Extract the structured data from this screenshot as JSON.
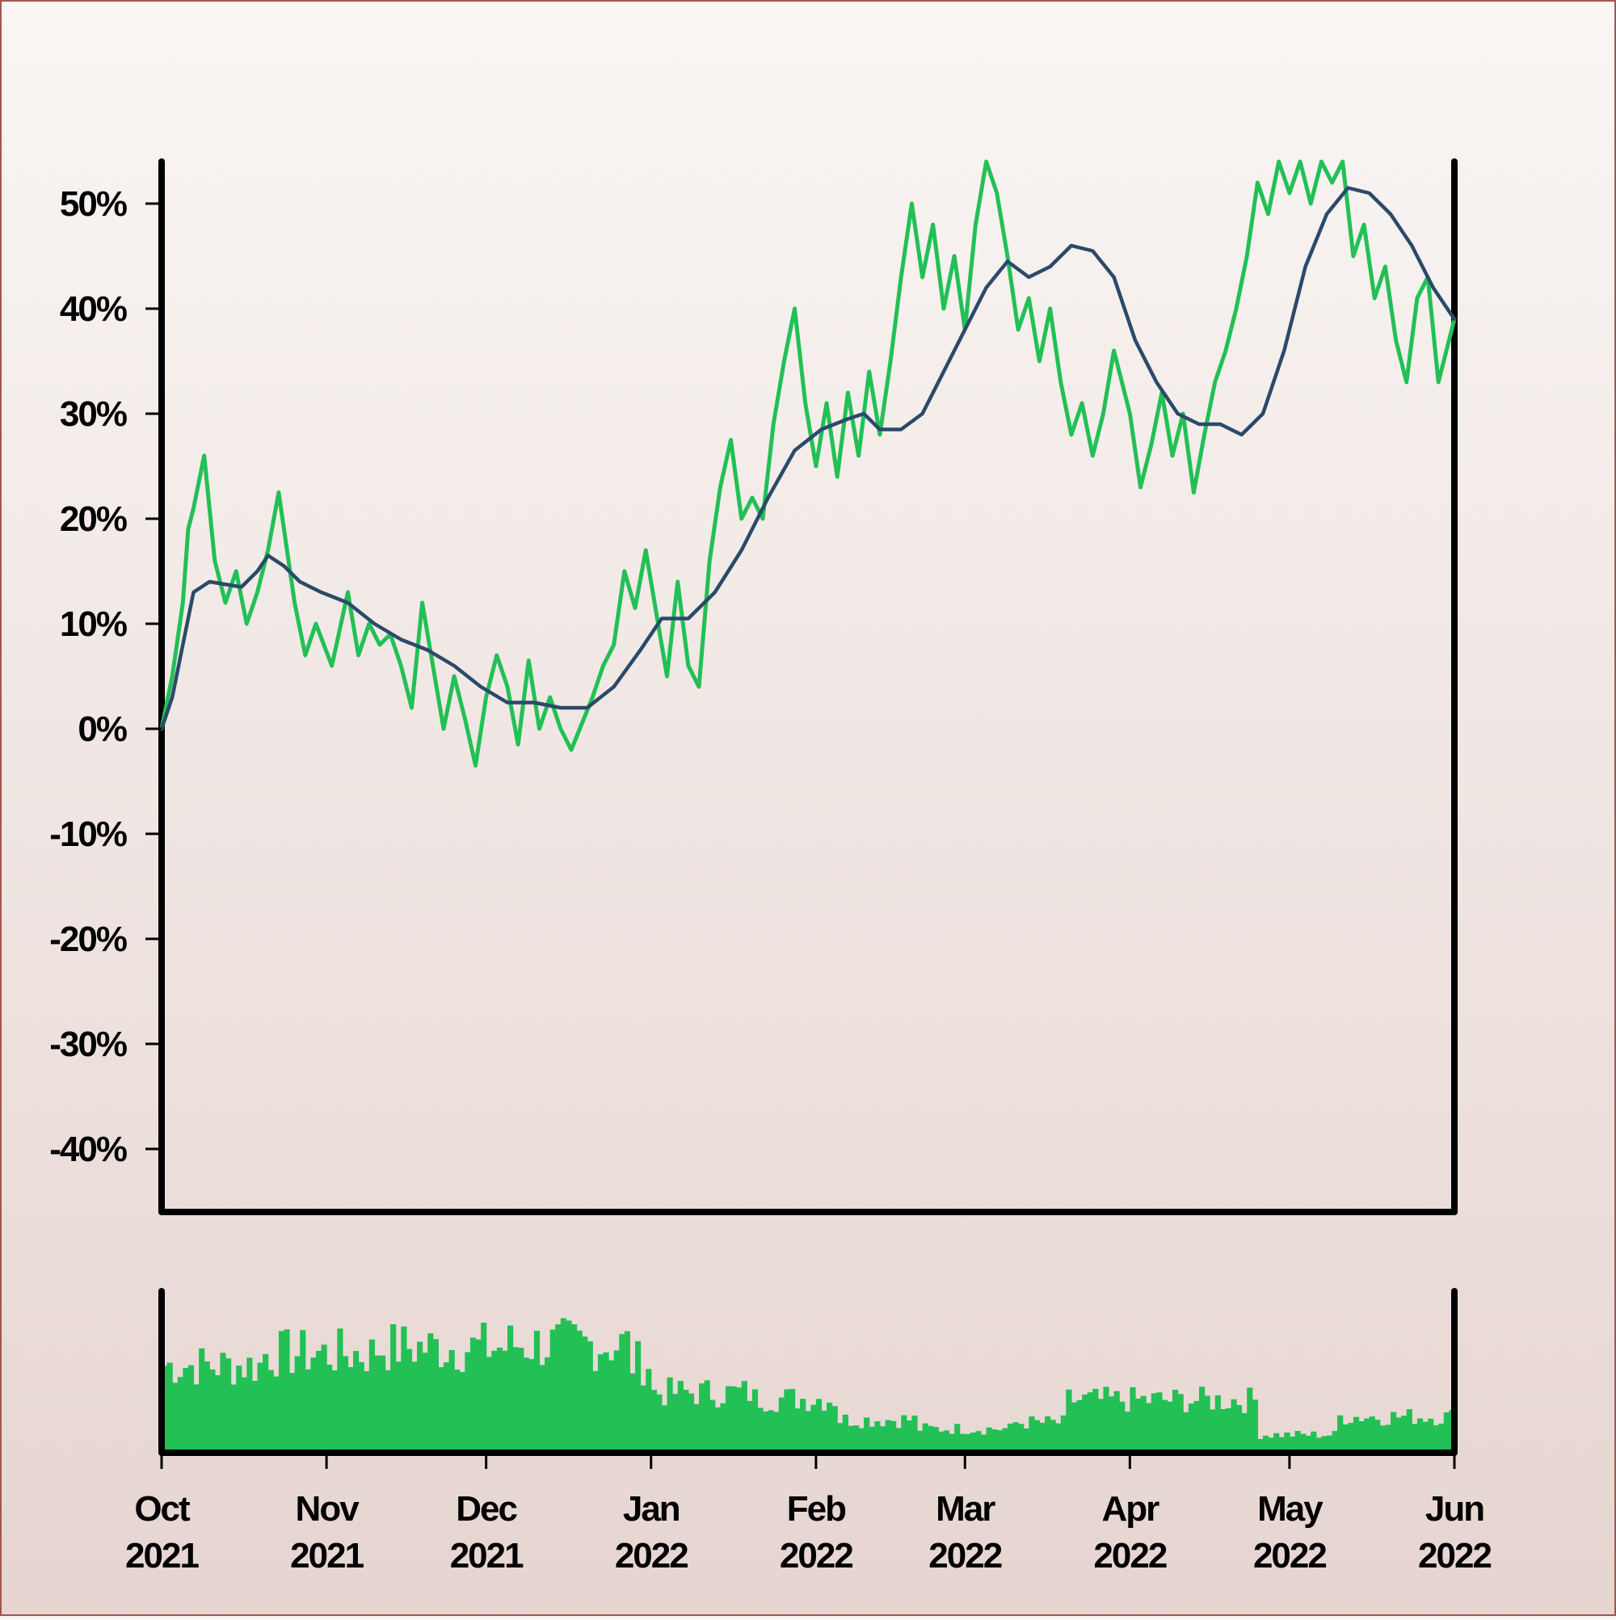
{
  "chart_data": {
    "type": "line",
    "x_range": [
      "2021-10-01",
      "2022-06-01"
    ],
    "ylim": [
      -0.46,
      0.54
    ],
    "y_ticks": [
      0.5,
      0.4,
      0.3,
      0.2,
      0.1,
      0.0,
      -0.1,
      -0.2,
      -0.3,
      -0.4
    ],
    "y_tick_labels": [
      "50%",
      "40%",
      "30%",
      "20%",
      "10%",
      "0%",
      "-10%",
      "-20%",
      "-30%",
      "-40%"
    ],
    "x_ticks": [
      {
        "date": "2021-10-01",
        "month": "Oct",
        "year": "2021"
      },
      {
        "date": "2021-11-01",
        "month": "Nov",
        "year": "2021"
      },
      {
        "date": "2021-12-01",
        "month": "Dec",
        "year": "2021"
      },
      {
        "date": "2022-01-01",
        "month": "Jan",
        "year": "2022"
      },
      {
        "date": "2022-02-01",
        "month": "Feb",
        "year": "2022"
      },
      {
        "date": "2022-03-01",
        "month": "Mar",
        "year": "2022"
      },
      {
        "date": "2022-04-01",
        "month": "Apr",
        "year": "2022"
      },
      {
        "date": "2022-05-01",
        "month": "May",
        "year": "2022"
      },
      {
        "date": "2022-06-01",
        "month": "Jun",
        "year": "2022"
      }
    ],
    "grid": false,
    "legend": "none",
    "series": [
      {
        "role": "cumulative-return",
        "color": "#22c055",
        "points": [
          [
            "2021-10-01",
            0.0
          ],
          [
            "2021-10-03",
            0.05
          ],
          [
            "2021-10-05",
            0.12
          ],
          [
            "2021-10-06",
            0.19
          ],
          [
            "2021-10-07",
            0.21
          ],
          [
            "2021-10-09",
            0.26
          ],
          [
            "2021-10-11",
            0.16
          ],
          [
            "2021-10-13",
            0.12
          ],
          [
            "2021-10-15",
            0.15
          ],
          [
            "2021-10-17",
            0.1
          ],
          [
            "2021-10-19",
            0.13
          ],
          [
            "2021-10-21",
            0.17
          ],
          [
            "2021-10-23",
            0.225
          ],
          [
            "2021-10-26",
            0.12
          ],
          [
            "2021-10-28",
            0.07
          ],
          [
            "2021-10-30",
            0.1
          ],
          [
            "2021-11-02",
            0.06
          ],
          [
            "2021-11-05",
            0.13
          ],
          [
            "2021-11-07",
            0.07
          ],
          [
            "2021-11-09",
            0.1
          ],
          [
            "2021-11-11",
            0.08
          ],
          [
            "2021-11-13",
            0.09
          ],
          [
            "2021-11-15",
            0.06
          ],
          [
            "2021-11-17",
            0.02
          ],
          [
            "2021-11-19",
            0.12
          ],
          [
            "2021-11-21",
            0.06
          ],
          [
            "2021-11-23",
            0.0
          ],
          [
            "2021-11-25",
            0.05
          ],
          [
            "2021-11-27",
            0.01
          ],
          [
            "2021-11-29",
            -0.035
          ],
          [
            "2021-12-01",
            0.03
          ],
          [
            "2021-12-03",
            0.07
          ],
          [
            "2021-12-05",
            0.04
          ],
          [
            "2021-12-07",
            -0.015
          ],
          [
            "2021-12-09",
            0.065
          ],
          [
            "2021-12-11",
            0.0
          ],
          [
            "2021-12-13",
            0.03
          ],
          [
            "2021-12-15",
            0.0
          ],
          [
            "2021-12-17",
            -0.02
          ],
          [
            "2021-12-19",
            0.005
          ],
          [
            "2021-12-21",
            0.03
          ],
          [
            "2021-12-23",
            0.06
          ],
          [
            "2021-12-25",
            0.08
          ],
          [
            "2021-12-27",
            0.15
          ],
          [
            "2021-12-29",
            0.115
          ],
          [
            "2021-12-31",
            0.17
          ],
          [
            "2022-01-02",
            0.11
          ],
          [
            "2022-01-04",
            0.05
          ],
          [
            "2022-01-06",
            0.14
          ],
          [
            "2022-01-08",
            0.06
          ],
          [
            "2022-01-10",
            0.04
          ],
          [
            "2022-01-12",
            0.16
          ],
          [
            "2022-01-14",
            0.23
          ],
          [
            "2022-01-16",
            0.275
          ],
          [
            "2022-01-18",
            0.2
          ],
          [
            "2022-01-20",
            0.22
          ],
          [
            "2022-01-22",
            0.2
          ],
          [
            "2022-01-24",
            0.29
          ],
          [
            "2022-01-26",
            0.35
          ],
          [
            "2022-01-28",
            0.4
          ],
          [
            "2022-01-30",
            0.31
          ],
          [
            "2022-02-01",
            0.25
          ],
          [
            "2022-02-03",
            0.31
          ],
          [
            "2022-02-05",
            0.24
          ],
          [
            "2022-02-07",
            0.32
          ],
          [
            "2022-02-09",
            0.26
          ],
          [
            "2022-02-11",
            0.34
          ],
          [
            "2022-02-13",
            0.28
          ],
          [
            "2022-02-15",
            0.35
          ],
          [
            "2022-02-17",
            0.43
          ],
          [
            "2022-02-19",
            0.5
          ],
          [
            "2022-02-21",
            0.43
          ],
          [
            "2022-02-23",
            0.48
          ],
          [
            "2022-02-25",
            0.4
          ],
          [
            "2022-02-27",
            0.45
          ],
          [
            "2022-03-01",
            0.38
          ],
          [
            "2022-03-03",
            0.48
          ],
          [
            "2022-03-05",
            0.54
          ],
          [
            "2022-03-07",
            0.51
          ],
          [
            "2022-03-09",
            0.45
          ],
          [
            "2022-03-11",
            0.38
          ],
          [
            "2022-03-13",
            0.41
          ],
          [
            "2022-03-15",
            0.35
          ],
          [
            "2022-03-17",
            0.4
          ],
          [
            "2022-03-19",
            0.33
          ],
          [
            "2022-03-21",
            0.28
          ],
          [
            "2022-03-23",
            0.31
          ],
          [
            "2022-03-25",
            0.26
          ],
          [
            "2022-03-27",
            0.3
          ],
          [
            "2022-03-29",
            0.36
          ],
          [
            "2022-04-01",
            0.3
          ],
          [
            "2022-04-03",
            0.23
          ],
          [
            "2022-04-05",
            0.27
          ],
          [
            "2022-04-07",
            0.32
          ],
          [
            "2022-04-09",
            0.26
          ],
          [
            "2022-04-11",
            0.3
          ],
          [
            "2022-04-13",
            0.225
          ],
          [
            "2022-04-15",
            0.28
          ],
          [
            "2022-04-17",
            0.33
          ],
          [
            "2022-04-19",
            0.36
          ],
          [
            "2022-04-21",
            0.4
          ],
          [
            "2022-04-23",
            0.45
          ],
          [
            "2022-04-25",
            0.52
          ],
          [
            "2022-04-27",
            0.49
          ],
          [
            "2022-04-29",
            0.54
          ],
          [
            "2022-05-01",
            0.51
          ],
          [
            "2022-05-03",
            0.54
          ],
          [
            "2022-05-05",
            0.5
          ],
          [
            "2022-05-07",
            0.54
          ],
          [
            "2022-05-09",
            0.52
          ],
          [
            "2022-05-11",
            0.54
          ],
          [
            "2022-05-13",
            0.45
          ],
          [
            "2022-05-15",
            0.48
          ],
          [
            "2022-05-17",
            0.41
          ],
          [
            "2022-05-19",
            0.44
          ],
          [
            "2022-05-21",
            0.37
          ],
          [
            "2022-05-23",
            0.33
          ],
          [
            "2022-05-25",
            0.41
          ],
          [
            "2022-05-27",
            0.43
          ],
          [
            "2022-05-29",
            0.33
          ],
          [
            "2022-06-01",
            0.39
          ]
        ]
      },
      {
        "role": "moving-average",
        "color": "#2b4a6a",
        "points": [
          [
            "2021-10-01",
            0.0
          ],
          [
            "2021-10-03",
            0.03
          ],
          [
            "2021-10-05",
            0.08
          ],
          [
            "2021-10-07",
            0.13
          ],
          [
            "2021-10-10",
            0.14
          ],
          [
            "2021-10-16",
            0.135
          ],
          [
            "2021-10-19",
            0.15
          ],
          [
            "2021-10-21",
            0.165
          ],
          [
            "2021-10-24",
            0.155
          ],
          [
            "2021-10-27",
            0.14
          ],
          [
            "2021-10-31",
            0.13
          ],
          [
            "2021-11-05",
            0.12
          ],
          [
            "2021-11-10",
            0.1
          ],
          [
            "2021-11-15",
            0.085
          ],
          [
            "2021-11-20",
            0.075
          ],
          [
            "2021-11-25",
            0.06
          ],
          [
            "2021-11-30",
            0.04
          ],
          [
            "2021-12-05",
            0.025
          ],
          [
            "2021-12-10",
            0.025
          ],
          [
            "2021-12-15",
            0.02
          ],
          [
            "2021-12-20",
            0.02
          ],
          [
            "2021-12-25",
            0.04
          ],
          [
            "2021-12-30",
            0.075
          ],
          [
            "2022-01-03",
            0.105
          ],
          [
            "2022-01-08",
            0.105
          ],
          [
            "2022-01-13",
            0.13
          ],
          [
            "2022-01-18",
            0.17
          ],
          [
            "2022-01-23",
            0.22
          ],
          [
            "2022-01-28",
            0.265
          ],
          [
            "2022-02-02",
            0.285
          ],
          [
            "2022-02-07",
            0.295
          ],
          [
            "2022-02-10",
            0.3
          ],
          [
            "2022-02-13",
            0.285
          ],
          [
            "2022-02-17",
            0.285
          ],
          [
            "2022-02-21",
            0.3
          ],
          [
            "2022-02-25",
            0.34
          ],
          [
            "2022-03-01",
            0.38
          ],
          [
            "2022-03-05",
            0.42
          ],
          [
            "2022-03-09",
            0.445
          ],
          [
            "2022-03-13",
            0.43
          ],
          [
            "2022-03-17",
            0.44
          ],
          [
            "2022-03-21",
            0.46
          ],
          [
            "2022-03-25",
            0.455
          ],
          [
            "2022-03-29",
            0.43
          ],
          [
            "2022-04-02",
            0.37
          ],
          [
            "2022-04-06",
            0.33
          ],
          [
            "2022-04-10",
            0.3
          ],
          [
            "2022-04-14",
            0.29
          ],
          [
            "2022-04-18",
            0.29
          ],
          [
            "2022-04-22",
            0.28
          ],
          [
            "2022-04-26",
            0.3
          ],
          [
            "2022-04-30",
            0.36
          ],
          [
            "2022-05-04",
            0.44
          ],
          [
            "2022-05-08",
            0.49
          ],
          [
            "2022-05-12",
            0.515
          ],
          [
            "2022-05-16",
            0.51
          ],
          [
            "2022-05-20",
            0.49
          ],
          [
            "2022-05-24",
            0.46
          ],
          [
            "2022-05-28",
            0.42
          ],
          [
            "2022-06-01",
            0.39
          ]
        ]
      }
    ],
    "volume_series": {
      "color": "#22c055",
      "unit": "relative",
      "segments": [
        {
          "start": "2021-10-01",
          "end": "2021-10-20",
          "level": 0.58
        },
        {
          "start": "2021-10-20",
          "end": "2021-11-10",
          "level": 0.66
        },
        {
          "start": "2021-11-10",
          "end": "2021-12-05",
          "level": 0.7
        },
        {
          "start": "2021-12-05",
          "end": "2021-12-28",
          "level": 0.72
        },
        {
          "start": "2021-12-28",
          "end": "2022-01-01",
          "level": 0.6
        },
        {
          "start": "2022-01-01",
          "end": "2022-01-20",
          "level": 0.4
        },
        {
          "start": "2022-01-20",
          "end": "2022-02-05",
          "level": 0.36
        },
        {
          "start": "2022-02-05",
          "end": "2022-02-20",
          "level": 0.22
        },
        {
          "start": "2022-02-20",
          "end": "2022-03-10",
          "level": 0.16
        },
        {
          "start": "2022-03-10",
          "end": "2022-03-20",
          "level": 0.2
        },
        {
          "start": "2022-03-20",
          "end": "2022-04-25",
          "level": 0.35
        },
        {
          "start": "2022-04-25",
          "end": "2022-05-10",
          "level": 0.12
        },
        {
          "start": "2022-05-10",
          "end": "2022-06-01",
          "level": 0.24
        }
      ]
    }
  }
}
